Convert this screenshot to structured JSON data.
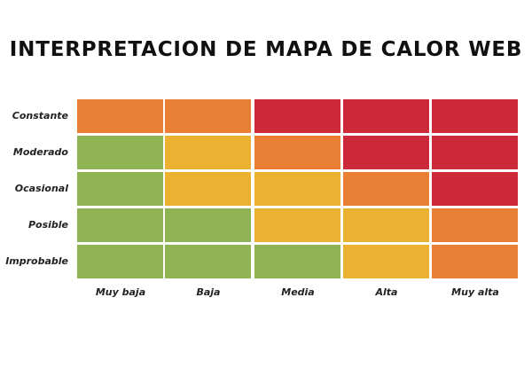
{
  "title": "Interpretacion de mapa de calor web",
  "colors": {
    "green": "#8FB353",
    "yellow": "#ECB131",
    "orange": "#E97E35",
    "red": "#CC2A3A"
  },
  "chart_data": {
    "type": "heatmap",
    "title": "INTERPRETACION DE MAPA DE CALOR WEB",
    "xlabel": "",
    "ylabel": "",
    "x_categories": [
      "Muy baja",
      "Baja",
      "Media",
      "Alta",
      "Muy alta"
    ],
    "y_categories": [
      "Constante",
      "Moderado",
      "Ocasional",
      "Posible",
      "Improbable"
    ],
    "scale": [
      "green",
      "yellow",
      "orange",
      "red"
    ],
    "cells": [
      [
        "orange",
        "orange",
        "red",
        "red",
        "red"
      ],
      [
        "green",
        "yellow",
        "orange",
        "red",
        "red"
      ],
      [
        "green",
        "yellow",
        "yellow",
        "orange",
        "red"
      ],
      [
        "green",
        "green",
        "yellow",
        "yellow",
        "orange"
      ],
      [
        "green",
        "green",
        "green",
        "yellow",
        "orange"
      ]
    ],
    "values": [
      [
        3,
        3,
        4,
        4,
        4
      ],
      [
        1,
        2,
        3,
        4,
        4
      ],
      [
        1,
        2,
        2,
        3,
        4
      ],
      [
        1,
        1,
        2,
        2,
        3
      ],
      [
        1,
        1,
        1,
        2,
        3
      ]
    ],
    "value_legend": {
      "1": "green",
      "2": "yellow",
      "3": "orange",
      "4": "red"
    },
    "grid": true,
    "legend_position": "none"
  }
}
